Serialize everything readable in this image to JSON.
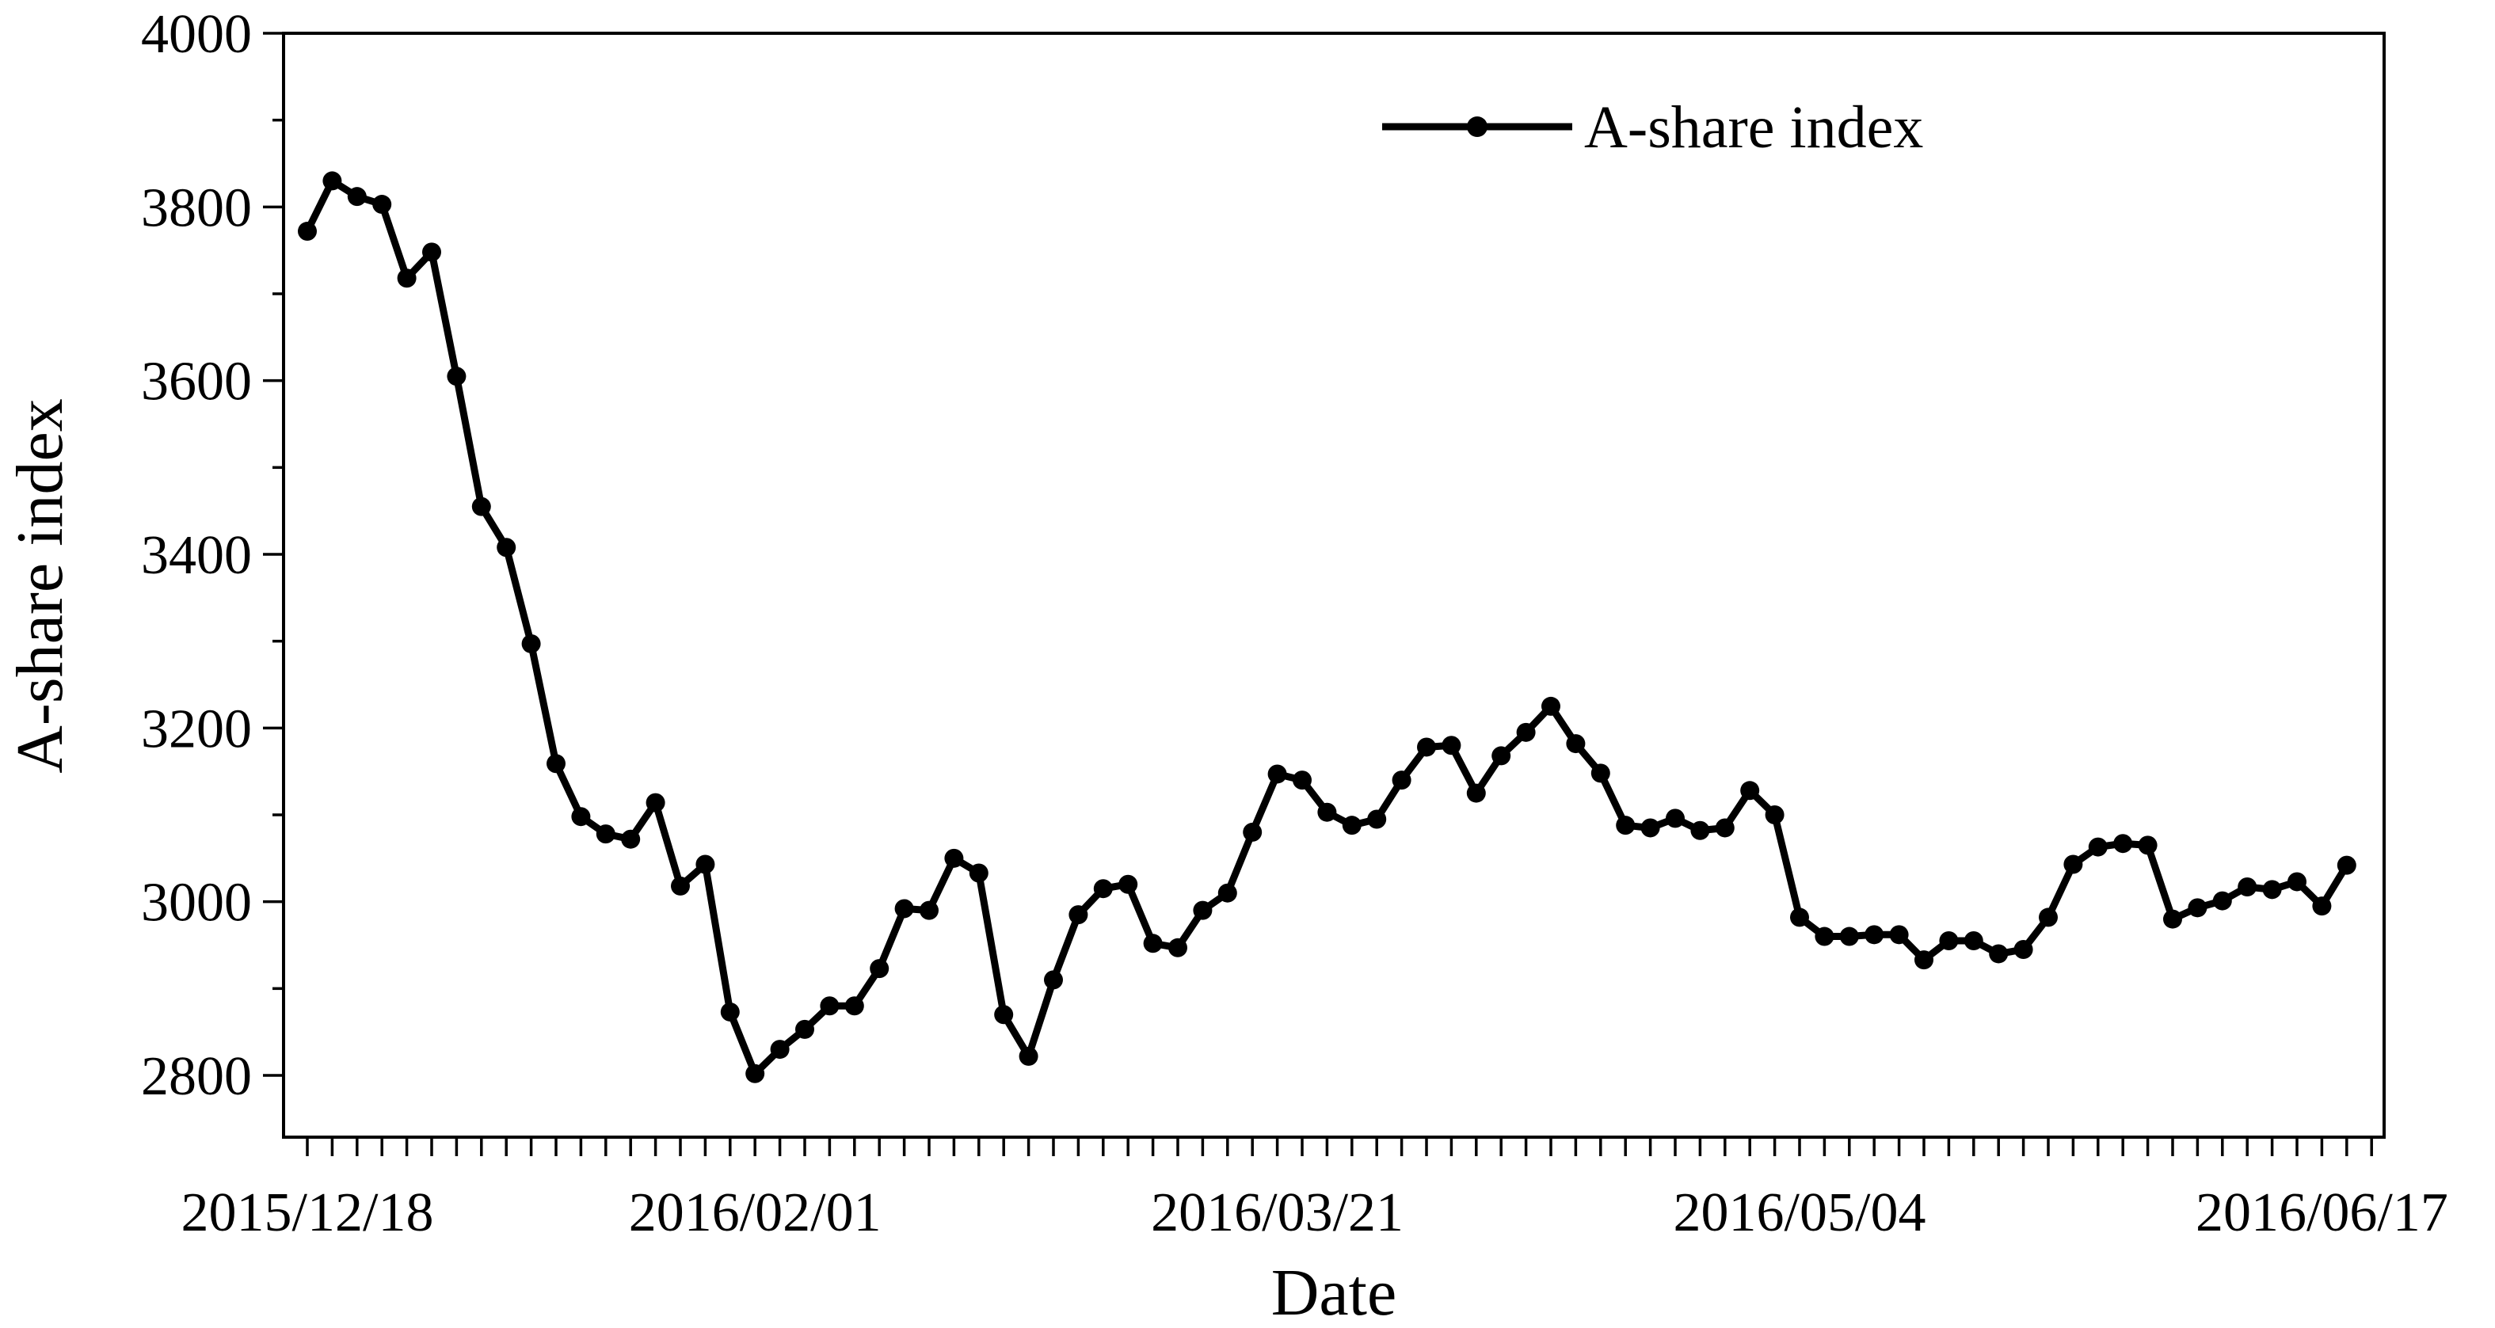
{
  "chart_data": {
    "type": "line",
    "title": "",
    "xlabel": "Date",
    "ylabel": "A-share index",
    "ylim": [
      2800,
      4000
    ],
    "x_tick_labels": [
      "2015/12/18",
      "2016/02/01",
      "2016/03/21",
      "2016/05/04",
      "2016/06/17"
    ],
    "x_tick_indices": [
      0,
      18,
      39,
      60,
      81
    ],
    "y_ticks": [
      2800,
      3000,
      3200,
      3400,
      3600,
      3800,
      4000
    ],
    "n_minor_x_ticks": 84,
    "grid": false,
    "legend_position": "top-right",
    "colors": {
      "series": "#000000"
    },
    "series": [
      {
        "name": "A-share index",
        "values": [
          3772,
          3830,
          3812,
          3803,
          3718,
          3748,
          3605,
          3455,
          3408,
          3297,
          3159,
          3098,
          3078,
          3072,
          3114,
          3018,
          3043,
          2873,
          2802,
          2830,
          2853,
          2880,
          2880,
          2923,
          2992,
          2990,
          3050,
          3033,
          2870,
          2822,
          2910,
          2985,
          3015,
          3020,
          2952,
          2947,
          2990,
          3010,
          3080,
          3147,
          3140,
          3103,
          3088,
          3095,
          3140,
          3178,
          3180,
          3125,
          3168,
          3195,
          3225,
          3182,
          3148,
          3088,
          3085,
          3096,
          3082,
          3085,
          3128,
          3100,
          2982,
          2960,
          2960,
          2962,
          2962,
          2933,
          2955,
          2955,
          2940,
          2945,
          2982,
          3043,
          3063,
          3067,
          3065,
          2980,
          2993,
          3001,
          3017,
          3014,
          3023,
          2995,
          3042
        ]
      }
    ]
  }
}
